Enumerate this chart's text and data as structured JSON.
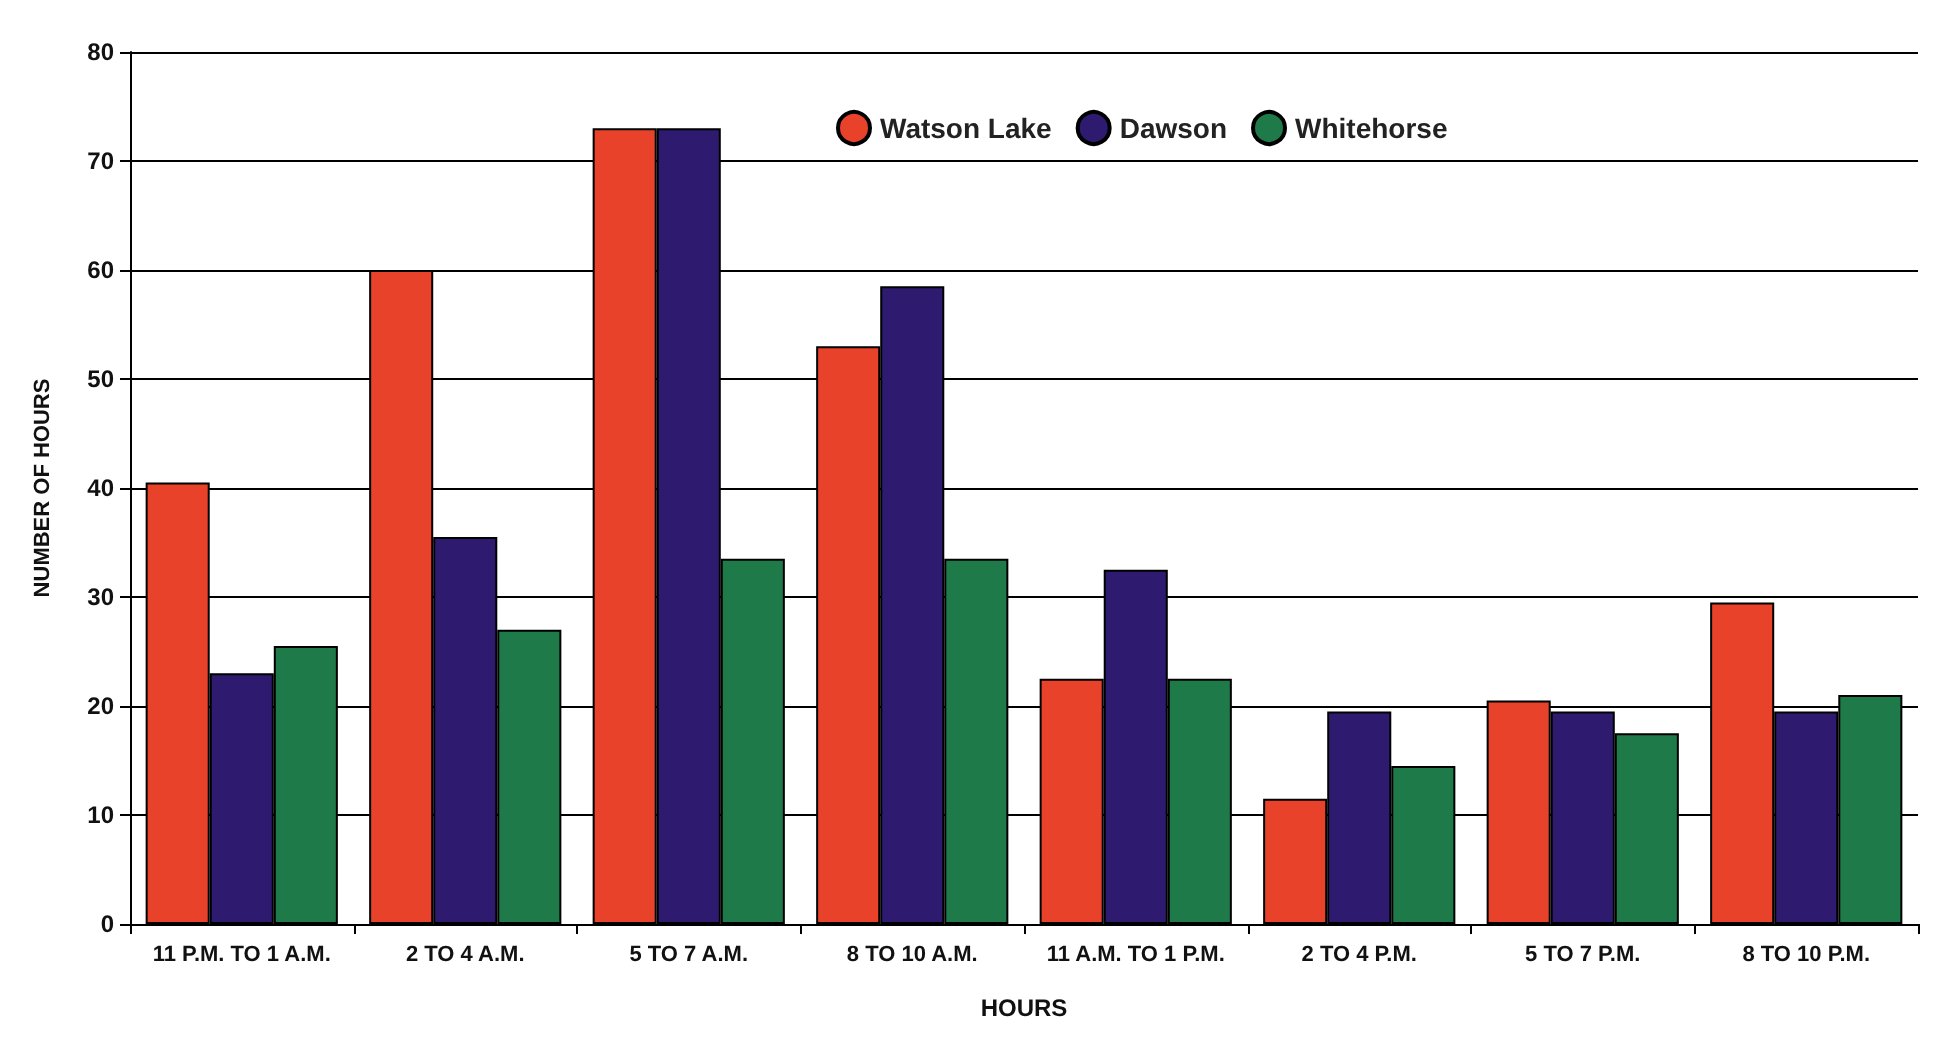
{
  "chart_data": {
    "type": "bar",
    "xlabel": "HOURS",
    "ylabel": "NUMBER OF HOURS",
    "categories": [
      "11 P.M. TO 1 A.M.",
      "2 TO 4 A.M.",
      "5 TO 7 A.M.",
      "8 TO 10 A.M.",
      "11 A.M. TO 1 P.M.",
      "2 TO 4 P.M.",
      "5 TO 7 P.M.",
      "8 TO 10 P.M."
    ],
    "series": [
      {
        "name": "Watson Lake",
        "color": "#e8432a",
        "values": [
          40.5,
          60,
          73,
          53,
          22.5,
          11.5,
          20.5,
          29.5
        ]
      },
      {
        "name": "Dawson",
        "color": "#2e1a6e",
        "values": [
          23,
          35.5,
          73,
          58.5,
          32.5,
          19.5,
          19.5,
          19.5
        ]
      },
      {
        "name": "Whitehorse",
        "color": "#1f7a4a",
        "values": [
          25.5,
          27,
          33.5,
          33.5,
          22.5,
          14.5,
          17.5,
          21
        ]
      }
    ],
    "ylim": [
      0,
      80
    ],
    "yticks": [
      0,
      10,
      20,
      30,
      40,
      50,
      60,
      70,
      80
    ],
    "grid": "y",
    "legend": "top"
  }
}
